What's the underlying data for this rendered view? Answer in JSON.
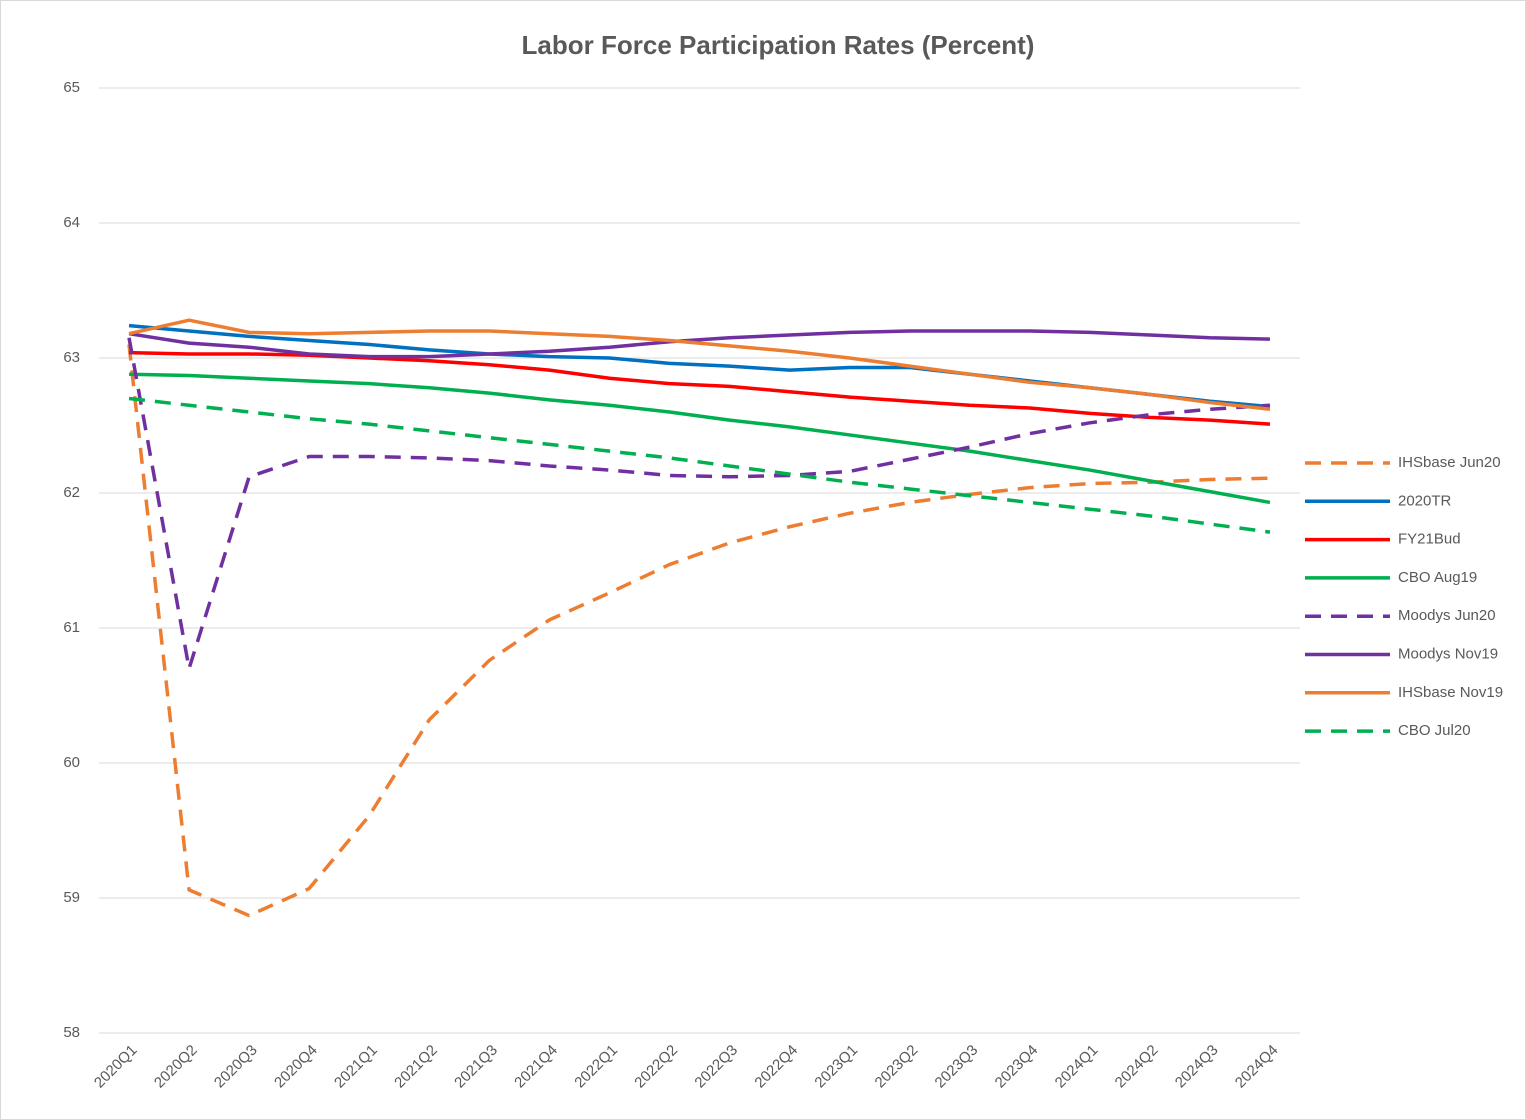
{
  "chart_data": {
    "type": "line",
    "title": "Labor Force Participation  Rates (Percent)",
    "categories": [
      "2020Q1",
      "2020Q2",
      "2020Q3",
      "2020Q4",
      "2021Q1",
      "2021Q2",
      "2021Q3",
      "2021Q4",
      "2022Q1",
      "2022Q2",
      "2022Q3",
      "2022Q4",
      "2023Q1",
      "2023Q2",
      "2023Q3",
      "2023Q4",
      "2024Q1",
      "2024Q2",
      "2024Q3",
      "2024Q4"
    ],
    "ylim": [
      58,
      65
    ],
    "yticks": [
      58,
      59,
      60,
      61,
      62,
      63,
      64,
      65
    ],
    "grid": true,
    "legend": "right",
    "series": [
      {
        "name": "IHSbase Jun20",
        "color": "#ed7d31",
        "dashed": true,
        "values": [
          63.1,
          59.06,
          58.87,
          59.07,
          59.61,
          60.32,
          60.76,
          61.06,
          61.26,
          61.47,
          61.63,
          61.75,
          61.85,
          61.93,
          61.99,
          62.04,
          62.07,
          62.08,
          62.1,
          62.11
        ]
      },
      {
        "name": "2020TR",
        "color": "#0070c0",
        "dashed": false,
        "values": [
          63.24,
          63.2,
          63.16,
          63.13,
          63.1,
          63.06,
          63.03,
          63.01,
          63.0,
          62.96,
          62.94,
          62.91,
          62.93,
          62.93,
          62.88,
          62.83,
          62.78,
          62.73,
          62.68,
          62.64
        ]
      },
      {
        "name": "FY21Bud",
        "color": "#ff0000",
        "dashed": false,
        "values": [
          63.04,
          63.03,
          63.03,
          63.02,
          63.0,
          62.98,
          62.95,
          62.91,
          62.85,
          62.81,
          62.79,
          62.75,
          62.71,
          62.68,
          62.65,
          62.63,
          62.59,
          62.56,
          62.54,
          62.51
        ]
      },
      {
        "name": "CBO Aug19",
        "color": "#00b050",
        "dashed": false,
        "values": [
          62.88,
          62.87,
          62.85,
          62.83,
          62.81,
          62.78,
          62.74,
          62.69,
          62.65,
          62.6,
          62.54,
          62.49,
          62.43,
          62.37,
          62.31,
          62.24,
          62.17,
          62.09,
          62.01,
          61.93
        ]
      },
      {
        "name": "Moodys Jun20",
        "color": "#7030a0",
        "dashed": true,
        "values": [
          63.15,
          60.7,
          62.12,
          62.27,
          62.27,
          62.26,
          62.24,
          62.2,
          62.17,
          62.13,
          62.12,
          62.13,
          62.16,
          62.25,
          62.34,
          62.44,
          62.52,
          62.58,
          62.62,
          62.65
        ]
      },
      {
        "name": "Moodys Nov19",
        "color": "#7030a0",
        "dashed": false,
        "values": [
          63.18,
          63.11,
          63.08,
          63.03,
          63.01,
          63.01,
          63.03,
          63.05,
          63.08,
          63.12,
          63.15,
          63.17,
          63.19,
          63.2,
          63.2,
          63.2,
          63.19,
          63.17,
          63.15,
          63.14
        ]
      },
      {
        "name": "IHSbase Nov19",
        "color": "#ed7d31",
        "dashed": false,
        "values": [
          63.18,
          63.28,
          63.19,
          63.18,
          63.19,
          63.2,
          63.2,
          63.18,
          63.16,
          63.13,
          63.09,
          63.05,
          63.0,
          62.94,
          62.88,
          62.82,
          62.78,
          62.73,
          62.67,
          62.62
        ]
      },
      {
        "name": "CBO Jul20",
        "color": "#00b050",
        "dashed": true,
        "values": [
          62.7,
          62.65,
          62.6,
          62.55,
          62.51,
          62.46,
          62.41,
          62.36,
          62.31,
          62.26,
          62.2,
          62.14,
          62.08,
          62.03,
          61.98,
          61.93,
          61.88,
          61.83,
          61.77,
          61.71
        ]
      }
    ]
  }
}
